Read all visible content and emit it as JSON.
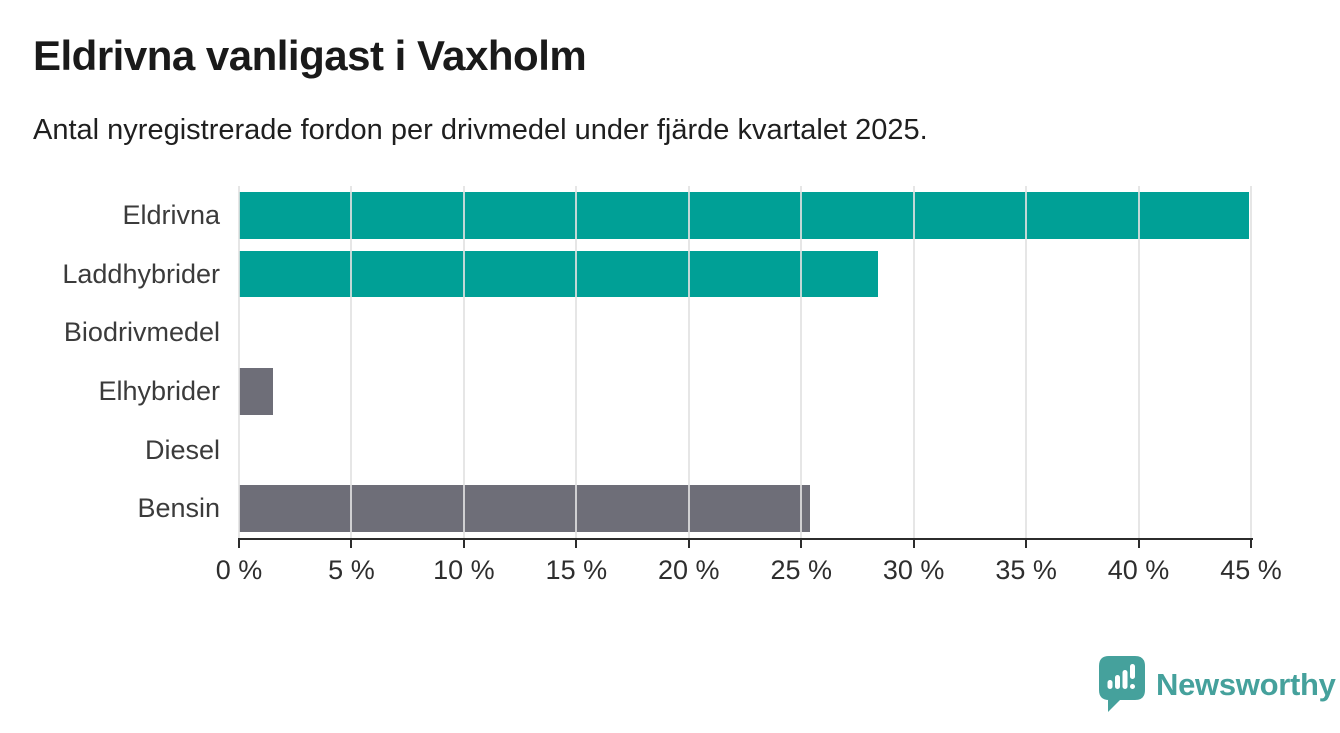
{
  "header": {
    "title": "Eldrivna vanligast i Vaxholm",
    "subtitle": "Antal nyregistrerade fordon per drivmedel under fjärde kvartalet 2025."
  },
  "chart_data": {
    "type": "bar",
    "orientation": "horizontal",
    "title": "Eldrivna vanligast i Vaxholm",
    "subtitle": "Antal nyregistrerade fordon per drivmedel under fjärde kvartalet 2025.",
    "categories": [
      "Eldrivna",
      "Laddhybrider",
      "Biodrivmedel",
      "Elhybrider",
      "Diesel",
      "Bensin"
    ],
    "values": [
      44.9,
      28.4,
      0,
      1.5,
      0,
      25.4
    ],
    "unit": "%",
    "xlabel": "",
    "ylabel": "",
    "xlim": [
      0,
      45
    ],
    "xtick_values": [
      0,
      5,
      10,
      15,
      20,
      25,
      30,
      35,
      40,
      45
    ],
    "xtick_labels": [
      "0 %",
      "5 %",
      "10 %",
      "15 %",
      "20 %",
      "25 %",
      "30 %",
      "35 %",
      "40 %",
      "45 %"
    ],
    "bar_colors": [
      "#00A096",
      "#00A096",
      "#00A096",
      "#6E6E78",
      "#6E6E78",
      "#6E6E78"
    ],
    "grid": true,
    "legend_position": "none"
  },
  "colors": {
    "teal_bar": "#00A096",
    "gray_bar": "#6E6E78",
    "axis": "#2C2C2C",
    "gridline": "#DCDCDC",
    "title_text": "#1A1A1A",
    "label_text": "#3B3B3B",
    "logo_teal": "#45A19C"
  },
  "branding": {
    "logo_text": "Newsworthy",
    "logo_icon": "newsworthy-speech-bubble-bar-chart-icon"
  }
}
